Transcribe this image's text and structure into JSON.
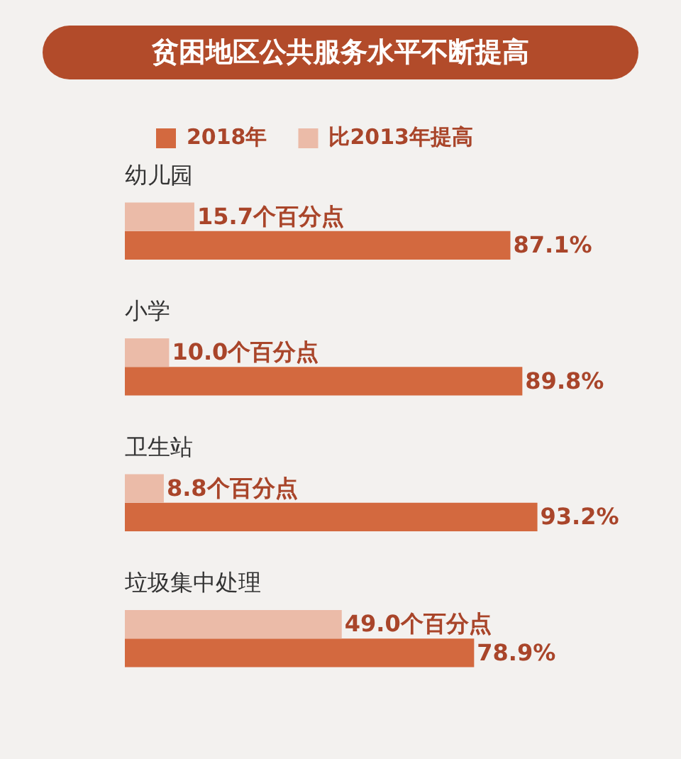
{
  "chart_data": {
    "type": "bar",
    "orientation": "horizontal",
    "title": "贫困地区公共服务水平不断提高",
    "categories": [
      "幼儿园",
      "小学",
      "卫生站",
      "垃圾集中处理"
    ],
    "series": [
      {
        "name": "比2013年提高",
        "color": "#ebbba8",
        "values": [
          15.7,
          10.0,
          8.8,
          49.0
        ],
        "value_labels": [
          "15.7个百分点",
          "10.0个百分点",
          "8.8个百分点",
          "49.0个百分点"
        ]
      },
      {
        "name": "2018年",
        "color": "#d3693f",
        "values": [
          87.1,
          89.8,
          93.2,
          78.9
        ],
        "value_labels": [
          "87.1%",
          "89.8%",
          "93.2%",
          "78.9%"
        ]
      }
    ],
    "legend": "top left"
  }
}
